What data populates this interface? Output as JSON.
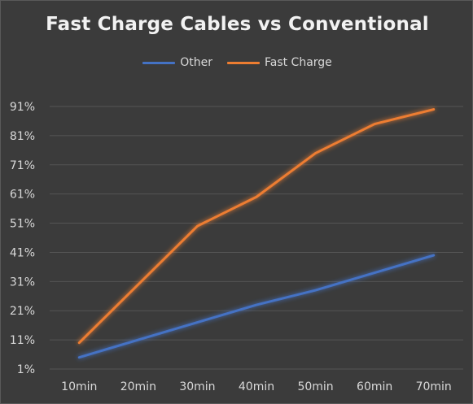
{
  "chart_data": {
    "type": "line",
    "title": "Fast Charge Cables vs Conventional",
    "xlabel": "",
    "ylabel": "",
    "categories": [
      "10min",
      "20min",
      "30min",
      "40min",
      "50min",
      "60min",
      "70min"
    ],
    "y_ticks": [
      "1%",
      "11%",
      "21%",
      "31%",
      "41%",
      "51%",
      "61%",
      "71%",
      "81%",
      "91%"
    ],
    "ylim": [
      1,
      91
    ],
    "grid": true,
    "legend_position": "top",
    "series": [
      {
        "name": "Other",
        "color": "#4472c4",
        "values": [
          5,
          11,
          17,
          23,
          28,
          34,
          40
        ]
      },
      {
        "name": "Fast Charge",
        "color": "#ed7d31",
        "values": [
          10,
          30,
          50,
          60,
          75,
          85,
          90
        ]
      }
    ]
  }
}
